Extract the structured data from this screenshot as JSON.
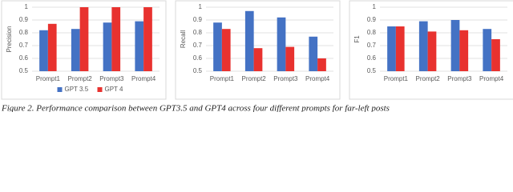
{
  "chart_data": [
    {
      "type": "bar",
      "ylabel": "Precision",
      "categories": [
        "Prompt1",
        "Prompt2",
        "Prompt3",
        "Prompt4"
      ],
      "series": [
        {
          "name": "GPT 3.5",
          "color": "#4472c4",
          "values": [
            0.82,
            0.83,
            0.88,
            0.89
          ]
        },
        {
          "name": "GPT 4",
          "color": "#e8322f",
          "values": [
            0.87,
            1.0,
            1.0,
            1.0
          ]
        }
      ],
      "ylim": [
        0.5,
        1
      ],
      "yticks": [
        0.5,
        0.6,
        0.7,
        0.8,
        0.9,
        1
      ],
      "grid": true,
      "legend": "bottom"
    },
    {
      "type": "bar",
      "ylabel": "Recall",
      "categories": [
        "Prompt1",
        "Prompt2",
        "Prompt3",
        "Prompt4"
      ],
      "series": [
        {
          "name": "GPT 3.5",
          "color": "#4472c4",
          "values": [
            0.88,
            0.97,
            0.92,
            0.77
          ]
        },
        {
          "name": "GPT 4",
          "color": "#e8322f",
          "values": [
            0.83,
            0.68,
            0.69,
            0.6
          ]
        }
      ],
      "ylim": [
        0.5,
        1
      ],
      "yticks": [
        0.5,
        0.6,
        0.7,
        0.8,
        0.9,
        1
      ],
      "grid": true
    },
    {
      "type": "bar",
      "ylabel": "F1",
      "categories": [
        "Prompt1",
        "Prompt2",
        "Prompt3",
        "Prompt4"
      ],
      "series": [
        {
          "name": "GPT 3.5",
          "color": "#4472c4",
          "values": [
            0.85,
            0.89,
            0.9,
            0.83
          ]
        },
        {
          "name": "GPT 4",
          "color": "#e8322f",
          "values": [
            0.85,
            0.81,
            0.82,
            0.75
          ]
        }
      ],
      "ylim": [
        0.5,
        1
      ],
      "yticks": [
        0.5,
        0.6,
        0.7,
        0.8,
        0.9,
        1
      ],
      "grid": true
    }
  ],
  "caption": "Figure 2. Performance comparison between GPT3.5 and GPT4 across four different prompts for far-left posts"
}
